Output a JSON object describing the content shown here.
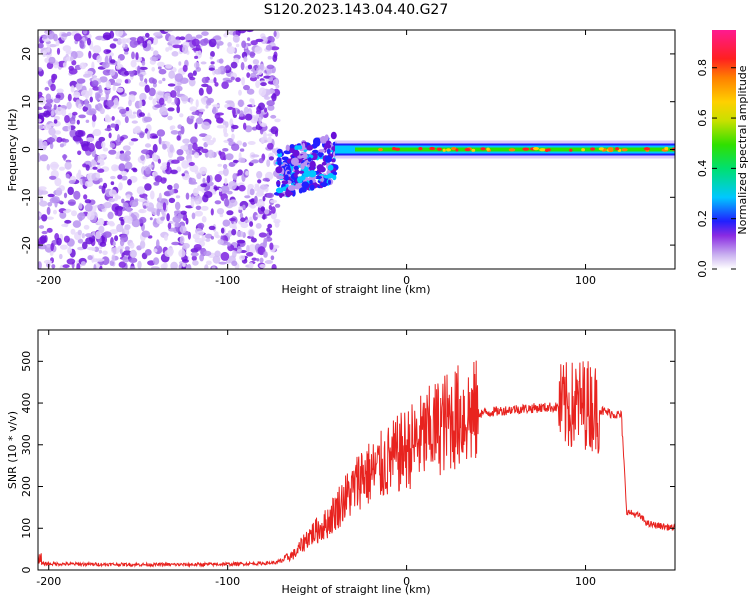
{
  "title": "S120.2023.143.04.40.G27",
  "colors": {
    "signal": "#e8231f",
    "noise": "#8a2be2",
    "band": "#00c8ff",
    "axis": "#000000"
  },
  "chart_data": [
    {
      "type": "heatmap",
      "title": "S120.2023.143.04.40.G27",
      "xlabel": "Height of straight line (km)",
      "ylabel": "Frequency (Hz)",
      "xlim": [
        -206,
        150
      ],
      "ylim": [
        -25,
        25
      ],
      "x_ticks": [
        -200,
        -100,
        0,
        100
      ],
      "y_ticks": [
        -20,
        -10,
        0,
        10,
        20
      ],
      "colorbar": {
        "label": "Normalized spectral amplitude",
        "range": [
          0.0,
          0.95
        ],
        "ticks": [
          0.0,
          0.2,
          0.4,
          0.6,
          0.8
        ]
      },
      "regions": [
        {
          "name": "broadband noise",
          "x": [
            -206,
            -72
          ],
          "freq": [
            -25,
            25
          ],
          "amplitude": 0.3
        },
        {
          "name": "signal onset",
          "x": [
            -72,
            -40
          ],
          "freq_center": [
            -5,
            -2
          ],
          "amplitude": 0.35
        },
        {
          "name": "narrow tone",
          "x": [
            -40,
            150
          ],
          "freq_center": 0,
          "amplitude": 0.9
        }
      ]
    },
    {
      "type": "line",
      "xlabel": "Height of straight line (km)",
      "ylabel": "SNR (10 * v/v)",
      "xlim": [
        -206,
        150
      ],
      "ylim": [
        0,
        575
      ],
      "x_ticks": [
        -200,
        -100,
        0,
        100
      ],
      "y_ticks": [
        0,
        100,
        200,
        300,
        400,
        500
      ],
      "series": [
        {
          "name": "SNR",
          "x": [
            -206,
            -180,
            -150,
            -120,
            -100,
            -80,
            -72,
            -62,
            -55,
            -45,
            -35,
            -30,
            -25,
            -20,
            -10,
            0,
            10,
            20,
            30,
            40,
            60,
            80,
            90,
            100,
            110,
            120,
            123,
            130,
            135,
            150
          ],
          "y": [
            15,
            14,
            13,
            13,
            14,
            16,
            18,
            40,
            80,
            110,
            170,
            190,
            230,
            230,
            260,
            290,
            320,
            350,
            370,
            375,
            385,
            390,
            390,
            400,
            380,
            370,
            140,
            130,
            110,
            100
          ]
        }
      ]
    }
  ]
}
